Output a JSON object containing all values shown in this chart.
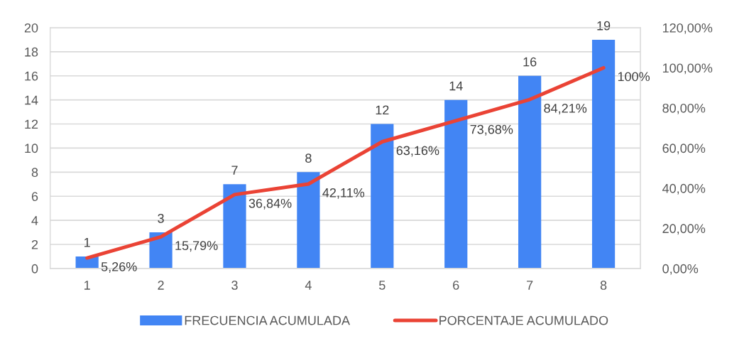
{
  "chart_data": {
    "type": "bar",
    "categories": [
      "1",
      "2",
      "3",
      "4",
      "5",
      "6",
      "7",
      "8"
    ],
    "series": [
      {
        "name": "FRECUENCIA ACUMULADA",
        "color": "#4285f4",
        "values": [
          1,
          3,
          7,
          8,
          12,
          14,
          16,
          19
        ],
        "value_labels": [
          "1",
          "3",
          "7",
          "8",
          "12",
          "14",
          "16",
          "19"
        ]
      },
      {
        "name": "PORCENTAJE ACUMULADO",
        "type": "line",
        "axis": "y2",
        "color": "#ea4335",
        "values": [
          5.26,
          15.79,
          36.84,
          42.11,
          63.16,
          73.68,
          84.21,
          100
        ],
        "value_labels": [
          "5,26%",
          "15,79%",
          "36,84%",
          "42,11%",
          "63,16%",
          "73,68%",
          "84,21%",
          "100%"
        ]
      }
    ],
    "ylim": [
      0,
      20
    ],
    "yticks": [
      0,
      2,
      4,
      6,
      8,
      10,
      12,
      14,
      16,
      18,
      20
    ],
    "y2lim": [
      0,
      120
    ],
    "y2ticks": [
      {
        "value": 0,
        "label": "0,00%"
      },
      {
        "value": 20,
        "label": "20,00%"
      },
      {
        "value": 40,
        "label": "40,00%"
      },
      {
        "value": 60,
        "label": "60,00%"
      },
      {
        "value": 80,
        "label": "80,00%"
      },
      {
        "value": 100,
        "label": "100,00%"
      },
      {
        "value": 120,
        "label": "120,00%"
      }
    ],
    "grid": "y",
    "legend": "bottom"
  }
}
